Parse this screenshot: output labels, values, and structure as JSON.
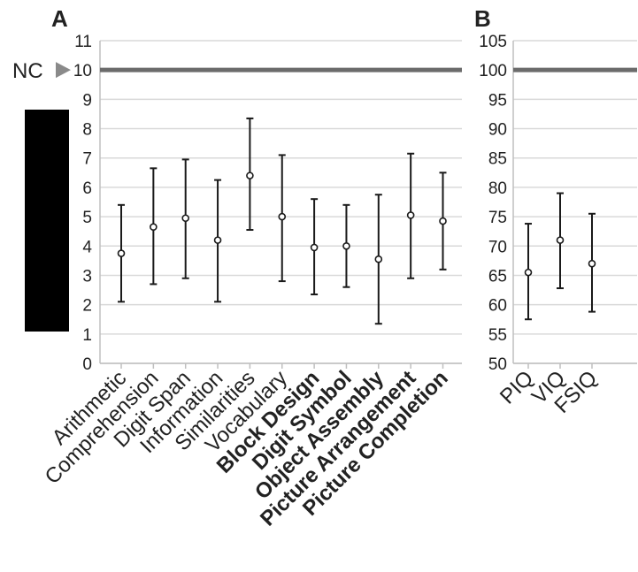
{
  "chart_data": [
    {
      "type": "scatter",
      "panel_label": "A",
      "reference": {
        "label": "NC",
        "value": 10
      },
      "ylim": [
        0,
        11
      ],
      "y_ticks": [
        "0",
        "1",
        "2",
        "3",
        "4",
        "5",
        "6",
        "7",
        "8",
        "9",
        "10",
        "11"
      ],
      "grid": true,
      "categories": [
        {
          "label": "Arithmetic",
          "bold": false
        },
        {
          "label": "Comprehension",
          "bold": false
        },
        {
          "label": "Digit Span",
          "bold": false
        },
        {
          "label": "Information",
          "bold": false
        },
        {
          "label": "Similarities",
          "bold": false
        },
        {
          "label": "Vocabulary",
          "bold": false
        },
        {
          "label": "Block Design",
          "bold": true
        },
        {
          "label": "Digit Symbol",
          "bold": true
        },
        {
          "label": "Object Assembly",
          "bold": true
        },
        {
          "label": "Picture Arrangement",
          "bold": true
        },
        {
          "label": "Picture Completion",
          "bold": true
        }
      ],
      "means": [
        3.75,
        4.65,
        4.95,
        4.2,
        6.4,
        5.0,
        3.95,
        4.0,
        3.55,
        5.05,
        4.85
      ],
      "lower": [
        2.1,
        2.7,
        2.9,
        2.1,
        4.55,
        2.8,
        2.35,
        2.6,
        1.35,
        2.9,
        3.2
      ],
      "upper": [
        5.4,
        6.65,
        6.95,
        6.25,
        8.35,
        7.1,
        5.6,
        5.4,
        5.75,
        7.15,
        6.5
      ]
    },
    {
      "type": "scatter",
      "panel_label": "B",
      "reference": {
        "label": "",
        "value": 100
      },
      "ylim": [
        50,
        105
      ],
      "y_ticks": [
        "50",
        "55",
        "60",
        "65",
        "70",
        "75",
        "80",
        "85",
        "90",
        "95",
        "100",
        "105"
      ],
      "grid": true,
      "categories": [
        {
          "label": "PIQ",
          "bold": false
        },
        {
          "label": "VIQ",
          "bold": false
        },
        {
          "label": "FSIQ",
          "bold": false
        }
      ],
      "means": [
        65.5,
        71.0,
        67.0
      ],
      "lower": [
        57.5,
        62.8,
        58.8
      ],
      "upper": [
        73.8,
        79.0,
        75.5
      ]
    }
  ],
  "colors": {
    "grid": "#d9d9d9",
    "axis": "#bfbfbf",
    "reference_line": "#6b6b6b",
    "reference_marker": "#8a8a8a",
    "error_bar": "#1a1a1a",
    "marker_fill": "#ffffff",
    "text": "#222222",
    "redaction": "#000000"
  }
}
